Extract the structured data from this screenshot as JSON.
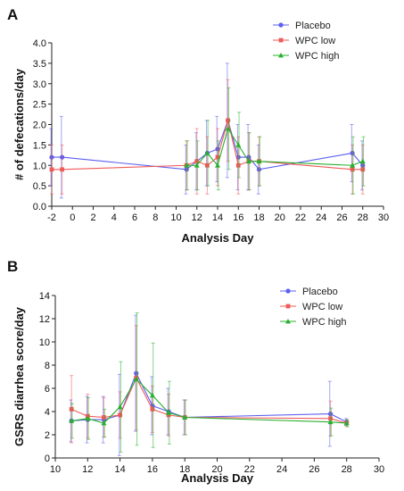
{
  "chart_data": [
    {
      "panel": "A",
      "type": "line",
      "xlabel": "Analysis Day",
      "ylabel": "# of defecations/day",
      "xlim": [
        -2,
        30
      ],
      "ylim": [
        0,
        4.0
      ],
      "xticks": [
        -2,
        0,
        2,
        4,
        6,
        8,
        10,
        12,
        14,
        16,
        18,
        20,
        22,
        24,
        26,
        28,
        30
      ],
      "xtick_labels": [
        "-2",
        "0",
        "2",
        "4",
        "6",
        "8",
        "10",
        "12",
        "14",
        "16",
        "18",
        "20",
        "22",
        "24",
        "26",
        "28",
        "30"
      ],
      "yticks": [
        0,
        0.5,
        1.0,
        1.5,
        2.0,
        2.5,
        3.0,
        3.5,
        4.0
      ],
      "ytick_labels": [
        "0.0",
        "0.5",
        "1.0",
        "1.5",
        "2.0",
        "2.5",
        "3.0",
        "3.5",
        "4.0"
      ],
      "legend_position": "top-right",
      "grid": false,
      "series": [
        {
          "name": "Placebo",
          "color": "#5b5ef0",
          "marker": "circle",
          "x": [
            -2,
            -1,
            11,
            12,
            13,
            14,
            15,
            16,
            17,
            18,
            27,
            28
          ],
          "y": [
            1.2,
            1.2,
            0.9,
            1.1,
            1.3,
            1.4,
            2.1,
            1.2,
            1.2,
            0.9,
            1.3,
            1.0
          ],
          "err": [
            0.7,
            1.0,
            0.6,
            0.7,
            0.8,
            0.8,
            1.4,
            0.8,
            0.8,
            0.6,
            0.7,
            0.6
          ]
        },
        {
          "name": "WPC low",
          "color": "#f05a5a",
          "marker": "square",
          "x": [
            -2,
            -1,
            11,
            12,
            13,
            14,
            15,
            16,
            17,
            18,
            27,
            28
          ],
          "y": [
            0.9,
            0.9,
            1.0,
            1.1,
            1.0,
            1.2,
            2.1,
            1.0,
            1.1,
            1.1,
            0.9,
            0.9
          ],
          "err": [
            0.6,
            0.6,
            0.6,
            0.8,
            0.7,
            0.7,
            1.0,
            0.7,
            0.7,
            0.6,
            0.6,
            0.6
          ]
        },
        {
          "name": "WPC high",
          "color": "#27b02c",
          "marker": "triangle",
          "x": [
            11,
            12,
            13,
            14,
            15,
            16,
            17,
            18,
            27,
            28
          ],
          "y": [
            1.0,
            1.0,
            1.3,
            1.0,
            1.9,
            1.5,
            1.1,
            1.1,
            1.0,
            1.1
          ],
          "err": [
            0.6,
            0.6,
            0.8,
            0.6,
            1.0,
            0.8,
            0.7,
            0.6,
            0.7,
            0.6
          ]
        }
      ]
    },
    {
      "panel": "B",
      "type": "line",
      "xlabel": "Analysis Day",
      "ylabel": "GSRS diarrhea score/day",
      "xlim": [
        10,
        30
      ],
      "ylim": [
        0,
        14
      ],
      "xticks": [
        10,
        12,
        14,
        16,
        18,
        20,
        22,
        24,
        26,
        28,
        30
      ],
      "xtick_labels": [
        "10",
        "12",
        "14",
        "16",
        "18",
        "20",
        "22",
        "24",
        "26",
        "28",
        "30"
      ],
      "yticks": [
        0,
        2,
        4,
        6,
        8,
        10,
        12,
        14
      ],
      "ytick_labels": [
        "0",
        "2",
        "4",
        "6",
        "8",
        "10",
        "12",
        "14"
      ],
      "legend_position": "top-right",
      "grid": false,
      "series": [
        {
          "name": "Placebo",
          "color": "#5b5ef0",
          "marker": "circle",
          "x": [
            11,
            12,
            13,
            14,
            15,
            16,
            17,
            18,
            27,
            28
          ],
          "y": [
            3.2,
            3.3,
            3.3,
            3.7,
            7.3,
            4.5,
            4.0,
            3.5,
            3.8,
            3.1
          ],
          "err": [
            1.8,
            2.0,
            2.0,
            3.5,
            5.0,
            2.5,
            2.0,
            1.5,
            2.8,
            0.3
          ]
        },
        {
          "name": "WPC low",
          "color": "#f05a5a",
          "marker": "square",
          "x": [
            11,
            12,
            13,
            14,
            15,
            16,
            17,
            18,
            27,
            28
          ],
          "y": [
            4.2,
            3.6,
            3.5,
            3.7,
            6.9,
            4.2,
            3.7,
            3.5,
            3.4,
            3.0
          ],
          "err": [
            2.9,
            1.9,
            1.7,
            2.0,
            4.5,
            2.0,
            1.8,
            1.5,
            1.5,
            0.3
          ]
        },
        {
          "name": "WPC high",
          "color": "#27b02c",
          "marker": "triangle",
          "x": [
            11,
            12,
            13,
            14,
            15,
            16,
            17,
            18,
            27,
            28
          ],
          "y": [
            3.2,
            3.4,
            3.0,
            4.4,
            6.8,
            5.4,
            3.9,
            3.5,
            3.1,
            3.0
          ],
          "err": [
            1.5,
            1.8,
            1.2,
            3.9,
            5.7,
            4.5,
            2.7,
            1.5,
            1.2,
            0.3
          ]
        }
      ]
    }
  ]
}
